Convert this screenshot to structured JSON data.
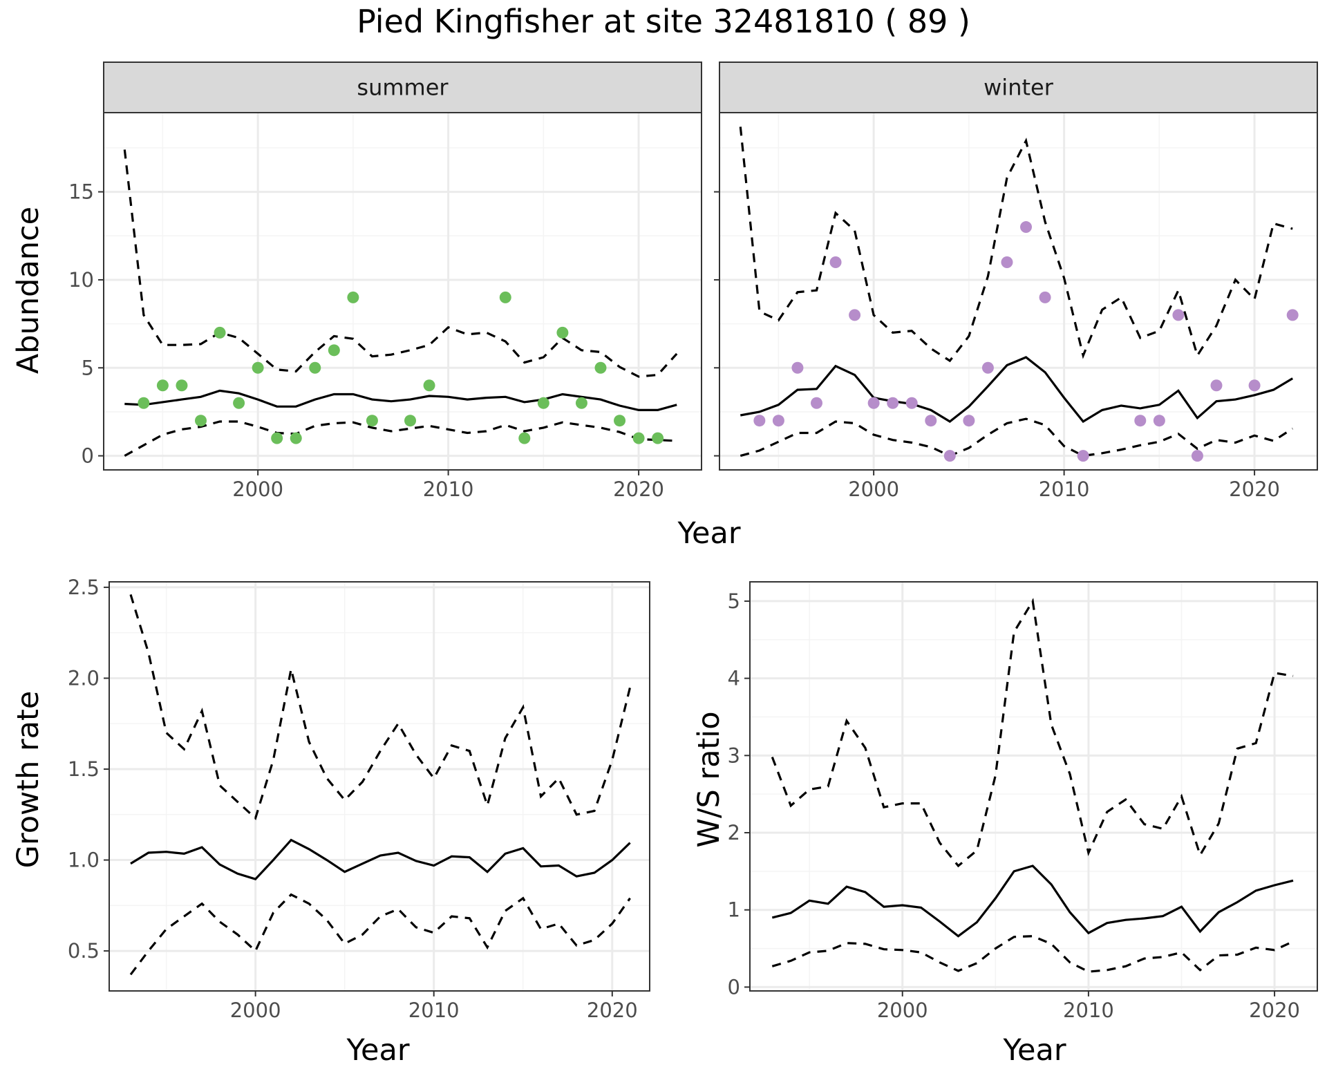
{
  "title": "Pied Kingfisher at site 32481810 ( 89 )",
  "colors": {
    "summer_points": "#6bbe5a",
    "winter_points": "#b68dca",
    "strip_fill": "#d9d9d9",
    "line": "#000000"
  },
  "chart_data": [
    {
      "type": "line",
      "panel": "abundance-summer",
      "strip_label": "summer",
      "xlabel": "Year",
      "ylabel": "Abundance",
      "xlim": [
        1991.9,
        2023.3
      ],
      "ylim": [
        -0.8,
        19.5
      ],
      "x_ticks": [
        2000,
        2010,
        2020
      ],
      "y_ticks": [
        0,
        5,
        10,
        15
      ],
      "grid": true,
      "x": [
        1993,
        1994,
        1995,
        1996,
        1997,
        1998,
        1999,
        2000,
        2001,
        2002,
        2003,
        2004,
        2005,
        2006,
        2007,
        2008,
        2009,
        2010,
        2011,
        2012,
        2013,
        2014,
        2015,
        2016,
        2017,
        2018,
        2019,
        2020,
        2021,
        2022
      ],
      "series": [
        {
          "style": "solid",
          "values": [
            2.95,
            2.9,
            3.05,
            3.2,
            3.35,
            3.7,
            3.55,
            3.2,
            2.8,
            2.8,
            3.2,
            3.5,
            3.5,
            3.2,
            3.1,
            3.2,
            3.4,
            3.35,
            3.2,
            3.3,
            3.35,
            3.05,
            3.2,
            3.5,
            3.35,
            3.2,
            2.85,
            2.6,
            2.6,
            2.9
          ]
        },
        {
          "style": "dashed",
          "values": [
            17.4,
            8.0,
            6.3,
            6.3,
            6.35,
            7.0,
            6.7,
            5.8,
            4.9,
            4.8,
            5.9,
            6.8,
            6.65,
            5.65,
            5.75,
            6.0,
            6.3,
            7.3,
            6.9,
            7.0,
            6.5,
            5.3,
            5.6,
            6.7,
            6.0,
            5.9,
            5.05,
            4.5,
            4.6,
            5.8
          ]
        },
        {
          "style": "dashed",
          "values": [
            0.0,
            0.6,
            1.2,
            1.5,
            1.65,
            1.95,
            1.95,
            1.65,
            1.3,
            1.25,
            1.7,
            1.85,
            1.9,
            1.6,
            1.4,
            1.55,
            1.7,
            1.5,
            1.3,
            1.4,
            1.75,
            1.4,
            1.6,
            1.9,
            1.75,
            1.6,
            1.35,
            0.95,
            0.9,
            0.85
          ]
        }
      ],
      "points": {
        "x": [
          1994,
          1995,
          1996,
          1997,
          1998,
          1999,
          2000,
          2001,
          2002,
          2003,
          2004,
          2005,
          2006,
          2008,
          2009,
          2013,
          2014,
          2015,
          2016,
          2017,
          2018,
          2019,
          2020,
          2021
        ],
        "y": [
          3,
          4,
          4,
          2,
          7,
          3,
          5,
          1,
          1,
          5,
          6,
          9,
          2,
          2,
          4,
          9,
          1,
          3,
          7,
          3,
          5,
          2,
          1,
          1
        ]
      }
    },
    {
      "type": "line",
      "panel": "abundance-winter",
      "strip_label": "winter",
      "xlabel": "Year",
      "ylabel": "Abundance",
      "xlim": [
        1991.9,
        2023.3
      ],
      "ylim": [
        -0.8,
        19.5
      ],
      "x_ticks": [
        2000,
        2010,
        2020
      ],
      "y_ticks": [
        0,
        5,
        10,
        15
      ],
      "grid": true,
      "x": [
        1993,
        1994,
        1995,
        1996,
        1997,
        1998,
        1999,
        2000,
        2001,
        2002,
        2003,
        2004,
        2005,
        2006,
        2007,
        2008,
        2009,
        2010,
        2011,
        2012,
        2013,
        2014,
        2015,
        2016,
        2017,
        2018,
        2019,
        2020,
        2021,
        2022
      ],
      "series": [
        {
          "style": "solid",
          "values": [
            2.3,
            2.5,
            2.9,
            3.75,
            3.8,
            5.1,
            4.6,
            3.3,
            3.1,
            2.95,
            2.6,
            1.95,
            2.8,
            3.95,
            5.15,
            5.6,
            4.75,
            3.3,
            1.95,
            2.6,
            2.85,
            2.7,
            2.9,
            3.7,
            2.15,
            3.1,
            3.2,
            3.45,
            3.75,
            4.4
          ]
        },
        {
          "style": "dashed",
          "values": [
            18.7,
            8.2,
            7.7,
            9.3,
            9.4,
            13.8,
            12.8,
            8.0,
            7.0,
            7.1,
            6.1,
            5.4,
            6.8,
            10.2,
            15.8,
            17.9,
            13.3,
            10.1,
            5.7,
            8.3,
            9.0,
            6.7,
            7.1,
            9.4,
            5.7,
            7.4,
            10.0,
            8.9,
            13.2,
            12.9
          ]
        },
        {
          "style": "dashed",
          "values": [
            0.0,
            0.3,
            0.8,
            1.3,
            1.3,
            1.95,
            1.85,
            1.2,
            0.9,
            0.75,
            0.5,
            0.0,
            0.45,
            1.2,
            1.85,
            2.1,
            1.75,
            0.55,
            0.0,
            0.15,
            0.35,
            0.6,
            0.8,
            1.25,
            0.4,
            0.9,
            0.75,
            1.15,
            0.85,
            1.55
          ]
        }
      ],
      "points": {
        "x": [
          1994,
          1995,
          1996,
          1997,
          1998,
          1999,
          2000,
          2001,
          2002,
          2003,
          2004,
          2005,
          2006,
          2007,
          2008,
          2009,
          2011,
          2014,
          2015,
          2016,
          2017,
          2018,
          2020,
          2022
        ],
        "y": [
          2,
          2,
          5,
          3,
          11,
          8,
          3,
          3,
          3,
          2,
          0,
          2,
          5,
          11,
          13,
          9,
          0,
          2,
          2,
          8,
          0,
          4,
          4,
          8
        ]
      }
    },
    {
      "type": "line",
      "panel": "growth-rate",
      "xlabel": "Year",
      "ylabel": "Growth rate",
      "xlim": [
        1991.8,
        2022.1
      ],
      "ylim": [
        0.28,
        2.53
      ],
      "x_ticks": [
        2000,
        2010,
        2020
      ],
      "y_ticks": [
        0.5,
        1.0,
        1.5,
        2.0,
        2.5
      ],
      "y_tick_labels": [
        "0.5",
        "1.0",
        "1.5",
        "2.0",
        "2.5"
      ],
      "grid": true,
      "x": [
        1993,
        1994,
        1995,
        1996,
        1997,
        1998,
        1999,
        2000,
        2001,
        2002,
        2003,
        2004,
        2005,
        2006,
        2007,
        2008,
        2009,
        2010,
        2011,
        2012,
        2013,
        2014,
        2015,
        2016,
        2017,
        2018,
        2019,
        2020,
        2021
      ],
      "series": [
        {
          "style": "solid",
          "values": [
            0.98,
            1.04,
            1.045,
            1.035,
            1.07,
            0.975,
            0.925,
            0.895,
            1.0,
            1.11,
            1.06,
            1.0,
            0.935,
            0.98,
            1.025,
            1.04,
            0.995,
            0.97,
            1.02,
            1.015,
            0.935,
            1.035,
            1.065,
            0.965,
            0.97,
            0.91,
            0.93,
            1.0,
            1.095
          ]
        },
        {
          "style": "dashed",
          "values": [
            2.46,
            2.14,
            1.7,
            1.61,
            1.82,
            1.41,
            1.32,
            1.23,
            1.55,
            2.05,
            1.65,
            1.45,
            1.33,
            1.43,
            1.6,
            1.75,
            1.58,
            1.45,
            1.63,
            1.6,
            1.3,
            1.67,
            1.84,
            1.35,
            1.45,
            1.25,
            1.27,
            1.55,
            1.95
          ]
        },
        {
          "style": "dashed",
          "values": [
            0.37,
            0.5,
            0.62,
            0.69,
            0.76,
            0.66,
            0.59,
            0.5,
            0.71,
            0.81,
            0.76,
            0.67,
            0.54,
            0.59,
            0.69,
            0.73,
            0.63,
            0.6,
            0.69,
            0.68,
            0.52,
            0.72,
            0.79,
            0.62,
            0.65,
            0.53,
            0.56,
            0.65,
            0.79
          ]
        }
      ]
    },
    {
      "type": "line",
      "panel": "ws-ratio",
      "xlabel": "Year",
      "ylabel": "W/S ratio",
      "xlim": [
        1991.8,
        2022.3
      ],
      "ylim": [
        -0.05,
        5.25
      ],
      "x_ticks": [
        2000,
        2010,
        2020
      ],
      "y_ticks": [
        0,
        1,
        2,
        3,
        4,
        5
      ],
      "grid": true,
      "x": [
        1993,
        1994,
        1995,
        1996,
        1997,
        1998,
        1999,
        2000,
        2001,
        2002,
        2003,
        2004,
        2005,
        2006,
        2007,
        2008,
        2009,
        2010,
        2011,
        2012,
        2013,
        2014,
        2015,
        2016,
        2017,
        2018,
        2019,
        2020,
        2021
      ],
      "series": [
        {
          "style": "solid",
          "values": [
            0.9,
            0.96,
            1.12,
            1.08,
            1.3,
            1.23,
            1.04,
            1.06,
            1.03,
            0.85,
            0.66,
            0.84,
            1.15,
            1.5,
            1.57,
            1.33,
            0.97,
            0.7,
            0.83,
            0.87,
            0.89,
            0.92,
            1.04,
            0.72,
            0.97,
            1.1,
            1.25,
            1.32,
            1.38
          ]
        },
        {
          "style": "dashed",
          "values": [
            2.98,
            2.35,
            2.56,
            2.6,
            3.45,
            3.1,
            2.33,
            2.38,
            2.38,
            1.87,
            1.57,
            1.77,
            2.74,
            4.6,
            5.0,
            3.4,
            2.76,
            1.74,
            2.27,
            2.43,
            2.11,
            2.05,
            2.47,
            1.71,
            2.12,
            3.09,
            3.16,
            4.07,
            4.03
          ]
        },
        {
          "style": "dashed",
          "values": [
            0.27,
            0.34,
            0.45,
            0.47,
            0.57,
            0.56,
            0.49,
            0.48,
            0.45,
            0.32,
            0.21,
            0.31,
            0.5,
            0.65,
            0.66,
            0.56,
            0.32,
            0.2,
            0.22,
            0.27,
            0.37,
            0.39,
            0.45,
            0.22,
            0.41,
            0.42,
            0.51,
            0.48,
            0.59
          ]
        }
      ]
    }
  ]
}
